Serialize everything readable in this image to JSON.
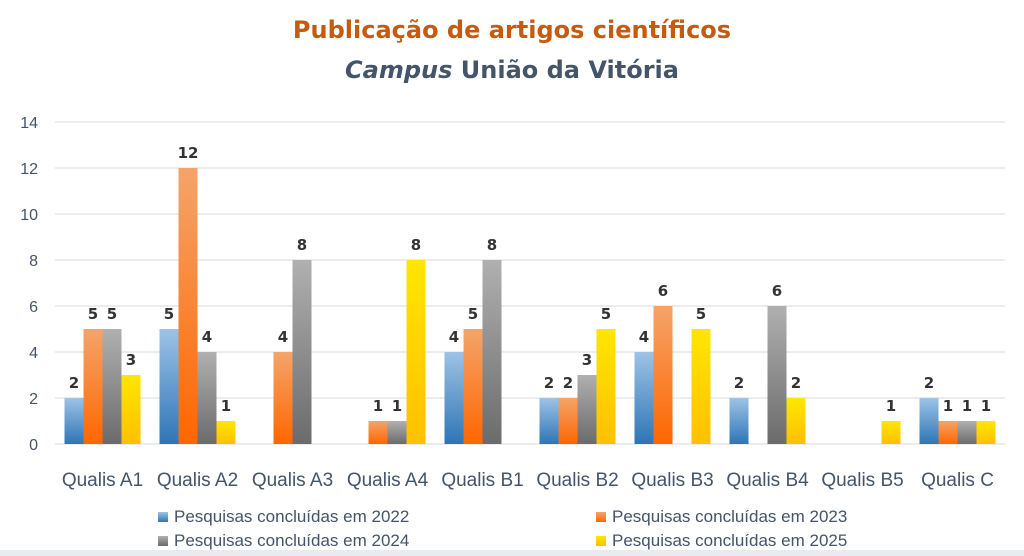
{
  "colors": {
    "title": "#c55a11",
    "subtitle": "#44546a",
    "axis_text": "#44546a",
    "grid": "#e3e6ea",
    "label": "#333333"
  },
  "chart_data": {
    "type": "bar",
    "title": "Publicação de artigos científicos",
    "subtitle_italic": "Campus",
    "subtitle_rest": " União da Vitória",
    "xlabel": "",
    "ylabel": "",
    "ylim": [
      0,
      14
    ],
    "yticks": [
      0,
      2,
      4,
      6,
      8,
      10,
      12,
      14
    ],
    "grid": true,
    "legend_position": "bottom",
    "categories": [
      "Qualis A1",
      "Qualis A2",
      "Qualis A3",
      "Qualis A4",
      "Qualis B1",
      "Qualis B2",
      "Qualis B3",
      "Qualis B4",
      "Qualis B5",
      "Qualis C"
    ],
    "series": [
      {
        "name": "Pesquisas concluídas em 2022",
        "color": "#2e75b6",
        "color_light": "#9dc3e6",
        "values": [
          2,
          5,
          null,
          null,
          4,
          2,
          4,
          2,
          null,
          2
        ]
      },
      {
        "name": "Pesquisas concluídas em 2023",
        "color": "#ff6600",
        "color_light": "#f4a46a",
        "values": [
          5,
          12,
          4,
          1,
          5,
          2,
          6,
          null,
          null,
          1
        ]
      },
      {
        "name": "Pesquisas concluídas em 2024",
        "color": "#6b6b6b",
        "color_light": "#b0b0b0",
        "values": [
          5,
          4,
          8,
          1,
          8,
          3,
          null,
          6,
          null,
          1
        ]
      },
      {
        "name": "Pesquisas concluídas em 2025",
        "color": "#ffc000",
        "color_light": "#ffe600",
        "values": [
          3,
          1,
          null,
          8,
          null,
          5,
          5,
          2,
          1,
          1
        ]
      }
    ]
  }
}
